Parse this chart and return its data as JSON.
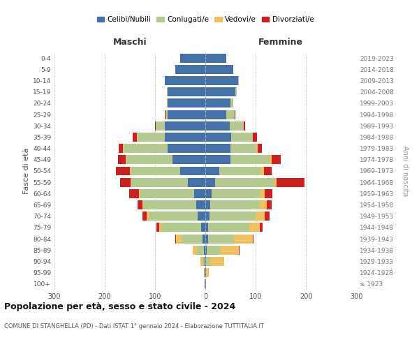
{
  "age_groups": [
    "100+",
    "95-99",
    "90-94",
    "85-89",
    "80-84",
    "75-79",
    "70-74",
    "65-69",
    "60-64",
    "55-59",
    "50-54",
    "45-49",
    "40-44",
    "35-39",
    "30-34",
    "25-29",
    "20-24",
    "15-19",
    "10-14",
    "5-9",
    "0-4"
  ],
  "birth_years": [
    "≤ 1923",
    "1924-1928",
    "1929-1933",
    "1934-1938",
    "1939-1943",
    "1944-1948",
    "1949-1953",
    "1954-1958",
    "1959-1963",
    "1964-1968",
    "1969-1973",
    "1974-1978",
    "1979-1983",
    "1984-1988",
    "1989-1993",
    "1994-1998",
    "1999-2003",
    "2004-2008",
    "2009-2013",
    "2014-2018",
    "2019-2023"
  ],
  "colors": {
    "celibi": "#4472a8",
    "coniugati": "#b5c98e",
    "vedovi": "#f0c060",
    "divorziati": "#cc2020"
  },
  "males": {
    "celibi": [
      1,
      1,
      2,
      3,
      5,
      8,
      15,
      18,
      22,
      35,
      50,
      65,
      75,
      80,
      80,
      75,
      75,
      75,
      80,
      60,
      50
    ],
    "coniugati": [
      0,
      1,
      4,
      14,
      42,
      80,
      98,
      105,
      108,
      112,
      98,
      92,
      88,
      55,
      18,
      4,
      2,
      1,
      0,
      0,
      0
    ],
    "vedovi": [
      0,
      1,
      4,
      8,
      12,
      4,
      4,
      2,
      2,
      2,
      2,
      1,
      1,
      1,
      0,
      0,
      0,
      0,
      0,
      0,
      0
    ],
    "divorziati": [
      0,
      0,
      0,
      0,
      1,
      5,
      8,
      10,
      20,
      20,
      28,
      16,
      8,
      8,
      2,
      1,
      0,
      0,
      0,
      0,
      0
    ]
  },
  "females": {
    "celibi": [
      1,
      1,
      2,
      3,
      5,
      5,
      8,
      10,
      12,
      20,
      28,
      50,
      50,
      52,
      48,
      42,
      50,
      60,
      65,
      55,
      42
    ],
    "coniugati": [
      0,
      1,
      8,
      28,
      52,
      82,
      92,
      98,
      98,
      118,
      82,
      78,
      52,
      42,
      28,
      16,
      5,
      3,
      2,
      0,
      0
    ],
    "vedovi": [
      1,
      5,
      28,
      36,
      38,
      22,
      18,
      14,
      8,
      4,
      6,
      4,
      2,
      1,
      1,
      1,
      0,
      0,
      0,
      0,
      0
    ],
    "divorziati": [
      0,
      0,
      0,
      1,
      1,
      5,
      10,
      10,
      15,
      55,
      16,
      18,
      8,
      8,
      2,
      1,
      0,
      0,
      0,
      0,
      0
    ]
  },
  "xlim": 300,
  "title": "Popolazione per età, sesso e stato civile - 2024",
  "subtitle": "COMUNE DI STANGHELLA (PD) - Dati ISTAT 1° gennaio 2024 - Elaborazione TUTTITALIA.IT",
  "ylabel_left": "Fasce di età",
  "ylabel_right": "Anni di nascita",
  "xlabel_left": "Maschi",
  "xlabel_right": "Femmine"
}
